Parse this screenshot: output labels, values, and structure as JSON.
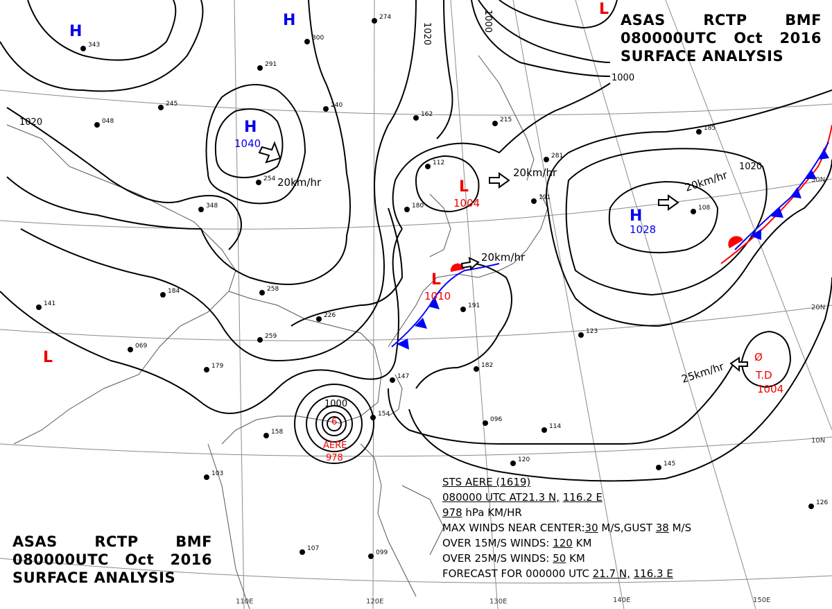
{
  "header_top": {
    "center": "ASAS",
    "station": "RCTP",
    "code": "BMF",
    "time": "080000UTC",
    "month": "Oct",
    "year": "2016",
    "title": "SURFACE ANALYSIS"
  },
  "header_bottom": {
    "center": "ASAS",
    "station": "RCTP",
    "code": "BMF",
    "time": "080000UTC",
    "month": "Oct",
    "year": "2016",
    "title": "SURFACE ANALYSIS"
  },
  "storm_info": {
    "name_line": "STS  AERE  (1619)",
    "time_line_a": "080000 UTC  AT",
    "lat": "21.3 N,",
    "lon": "116.2 E",
    "pressure": "978",
    "units": "hPa     KM/HR",
    "max_winds_label": "MAX WINDS NEAR CENTER:",
    "max_wind": "30",
    "gust_label": " M/S,GUST ",
    "gust": "38",
    "gust_unit": " M/S",
    "r15_label": "OVER 15M/S WINDS: ",
    "r15": "120",
    "r15_unit": " KM",
    "r25_label": "OVER 25M/S WINDS: ",
    "r25": "50",
    "r25_unit": " KM",
    "forecast_label": "FORECAST FOR 000000 UTC ",
    "f_lat": "21.7 N,",
    "f_lon": "116.3 E"
  },
  "pressure_centers": [
    {
      "type": "H",
      "value": ""
    },
    {
      "type": "H",
      "value": ""
    },
    {
      "type": "H",
      "value": "1040"
    },
    {
      "type": "H",
      "value": "1028"
    },
    {
      "type": "L",
      "value": "1004"
    },
    {
      "type": "L",
      "value": "1010"
    },
    {
      "type": "L",
      "value": ""
    },
    {
      "type": "L",
      "value": ""
    }
  ],
  "storms": [
    {
      "name": "AERE",
      "pressure": "978"
    },
    {
      "name": "T.D",
      "pressure": "1004"
    }
  ],
  "isobar_labels": [
    "1020",
    "1020",
    "1000",
    "1000",
    "1020",
    "1000"
  ],
  "motion_labels": [
    "20km/hr",
    "20km/hr",
    "20km/hr",
    "20km/hr",
    "25km/hr"
  ],
  "lat_labels": [
    "30N",
    "20N",
    "10N"
  ],
  "lon_labels": [
    "110E",
    "120E",
    "130E",
    "140E",
    "150E"
  ],
  "station_samples": [
    "343",
    "245",
    "291",
    "300",
    "274",
    "240",
    "162",
    "048",
    "254",
    "348",
    "258",
    "226",
    "259",
    "191",
    "182",
    "147",
    "154",
    "158",
    "103",
    "107",
    "099",
    "120",
    "096",
    "114",
    "123",
    "126",
    "145",
    "185",
    "108",
    "112",
    "180",
    "215",
    "281",
    "069",
    "141",
    "179",
    "184",
    "191"
  ],
  "colors": {
    "high": "#0000ee",
    "low": "#ee0000",
    "front": "#0000ff",
    "line": "#000000",
    "grid": "#888888"
  }
}
